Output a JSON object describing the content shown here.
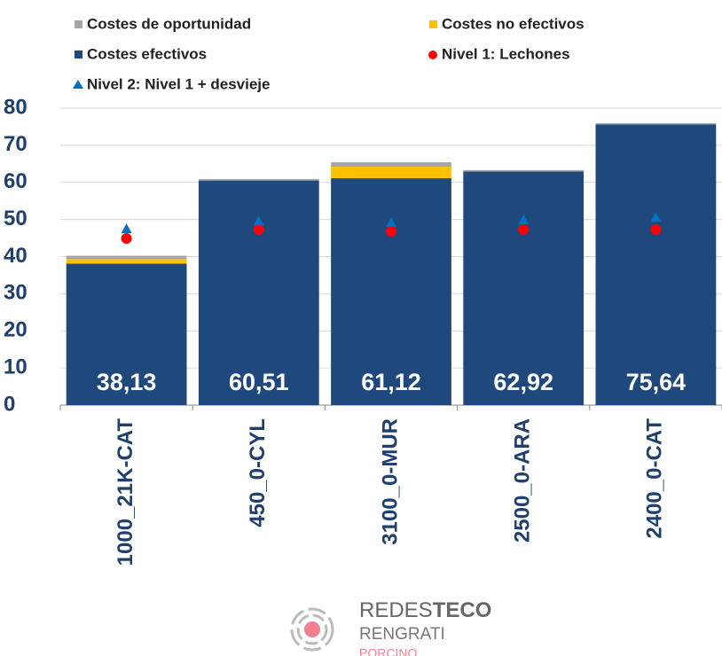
{
  "chart_data": {
    "type": "bar",
    "stacked": true,
    "categories": [
      "1000_21K-CAT",
      "450_0-CYL",
      "3100_0-MUR",
      "2500_0-ARA",
      "2400_0-CAT"
    ],
    "series": [
      {
        "name": "Costes de oportunidad",
        "type": "bar",
        "color": "#a6a6a6",
        "values": [
          0.9,
          0.4,
          1.2,
          0.4,
          0.3
        ]
      },
      {
        "name": "Costes no efectivos",
        "type": "bar",
        "color": "#ffc000",
        "values": [
          1.2,
          0,
          3.1,
          0,
          0
        ]
      },
      {
        "name": "Costes efectivos",
        "type": "bar",
        "color": "#1f497d",
        "values": [
          38.13,
          60.51,
          61.12,
          62.92,
          75.64
        ],
        "value_labels": [
          "38,13",
          "60,51",
          "61,12",
          "62,92",
          "75,64"
        ]
      },
      {
        "name": "Nivel 1: Lechones",
        "type": "circle",
        "color": "#ff0000",
        "values": [
          44.9,
          47.3,
          46.8,
          47.3,
          47.3
        ]
      },
      {
        "name": "Nivel 2: Nivel 1 + desvieje",
        "type": "triangle",
        "color": "#0070c0",
        "values": [
          47.5,
          49.6,
          49.2,
          49.9,
          50.6
        ]
      }
    ],
    "ylim": [
      0,
      80
    ],
    "yticks": [
      0,
      10,
      20,
      30,
      40,
      50,
      60,
      70,
      80
    ],
    "grid": true,
    "legend": "top"
  },
  "logo": {
    "name_light": "REDES",
    "name_bold": "TECO",
    "line2": "RENGRATI",
    "line3": "PORCINO"
  }
}
